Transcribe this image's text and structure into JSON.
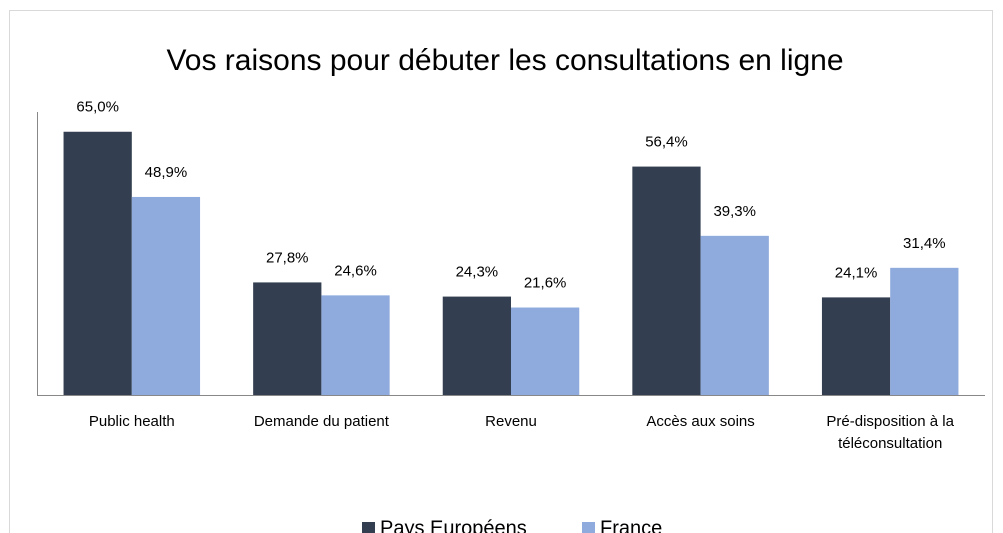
{
  "chart_data": {
    "type": "bar",
    "title": "Vos raisons pour débuter les consultations en ligne",
    "categories": [
      "Public health",
      "Demande du patient",
      "Revenu",
      "Accès aux soins",
      "Pré-disposition à la téléconsultation"
    ],
    "series": [
      {
        "name": "Pays Européens",
        "color": "#333f50",
        "values": [
          65.0,
          27.8,
          24.3,
          56.4,
          24.1
        ],
        "value_labels": [
          "65,0%",
          "27,8%",
          "24,3%",
          "56,4%",
          "24,1%"
        ]
      },
      {
        "name": "France",
        "color": "#8faadc",
        "values": [
          48.9,
          24.6,
          21.6,
          39.3,
          31.4
        ],
        "value_labels": [
          "48,9%",
          "24,6%",
          "21,6%",
          "39,3%",
          "31,4%"
        ]
      }
    ],
    "ylim": [
      0,
      70
    ],
    "legend": "bottom"
  }
}
